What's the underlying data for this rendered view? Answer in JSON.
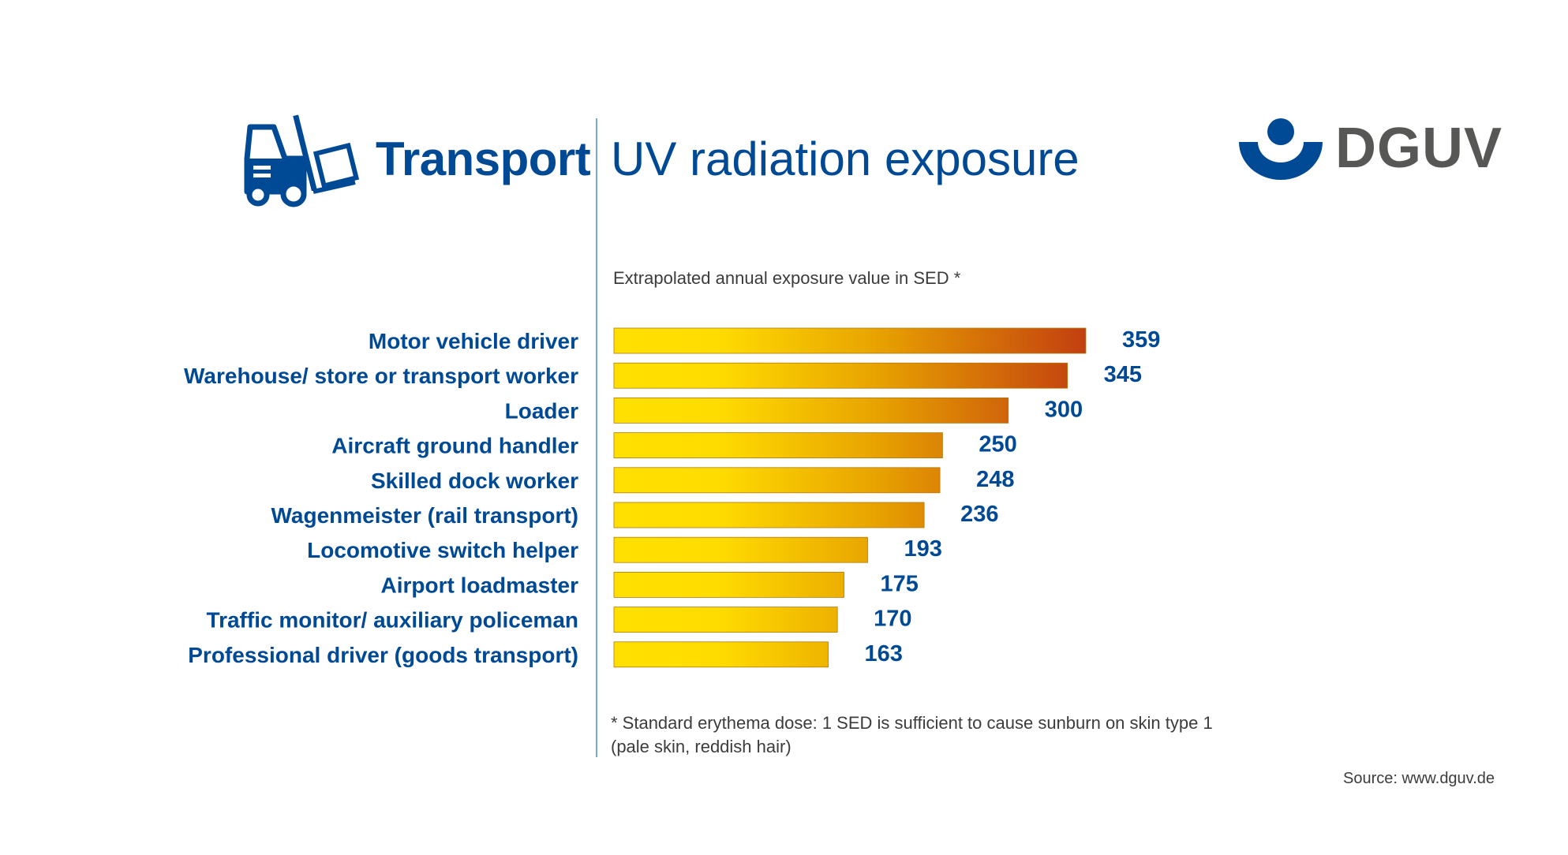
{
  "header": {
    "category": "Transport",
    "title": "UV radiation exposure",
    "category_icon": "forklift-icon"
  },
  "logo": {
    "text": "DGUV",
    "mark_icon": "dguv-logo-mark",
    "mark_color": "#004994",
    "text_color": "#575756"
  },
  "chart_data": {
    "type": "bar",
    "orientation": "horizontal",
    "title": "Extrapolated annual exposure value in SED *",
    "categories": [
      "Motor vehicle driver",
      "Warehouse/ store or transport worker",
      "Loader",
      "Aircraft ground handler",
      "Skilled dock worker",
      "Wagenmeister (rail transport)",
      "Locomotive switch helper",
      "Airport loadmaster",
      "Traffic monitor/ auxiliary policeman",
      "Professional driver (goods transport)"
    ],
    "values": [
      359,
      345,
      300,
      250,
      248,
      236,
      193,
      175,
      170,
      163
    ],
    "xlabel": "",
    "ylabel": "",
    "xlim": [
      0,
      359
    ],
    "grid": false,
    "legend": "none",
    "colors": {
      "gradient_start": "#ffe000",
      "gradient_mid": "#e8a400",
      "gradient_end": "#c23f10",
      "label": "#004994"
    }
  },
  "footnote": {
    "line1": "* Standard erythema dose: 1 SED is sufficient to cause sunburn on skin type 1",
    "line2": "(pale skin, reddish hair)"
  },
  "source": "Source: www.dguv.de"
}
